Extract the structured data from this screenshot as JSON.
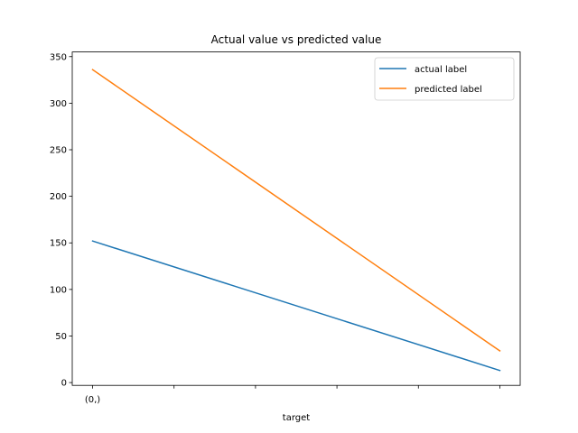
{
  "chart_data": {
    "type": "line",
    "title": "Actual value vs predicted value",
    "xlabel": "target",
    "ylabel": "",
    "x": [
      0,
      1,
      2,
      3,
      4,
      5
    ],
    "x_tick_labels": [
      "(0,)",
      "",
      "",
      "",
      "",
      ""
    ],
    "xlim": [
      -0.25,
      5.25
    ],
    "ylim": [
      -3,
      355
    ],
    "y_ticks": [
      0,
      50,
      100,
      150,
      200,
      250,
      300,
      350
    ],
    "series": [
      {
        "name": "actual label",
        "color": "#1f77b4",
        "x": [
          0,
          5
        ],
        "y": [
          152,
          13
        ]
      },
      {
        "name": "predicted label",
        "color": "#ff7f0e",
        "x": [
          0,
          5
        ],
        "y": [
          336,
          34
        ]
      }
    ],
    "grid": false,
    "legend_position": "top-right"
  }
}
